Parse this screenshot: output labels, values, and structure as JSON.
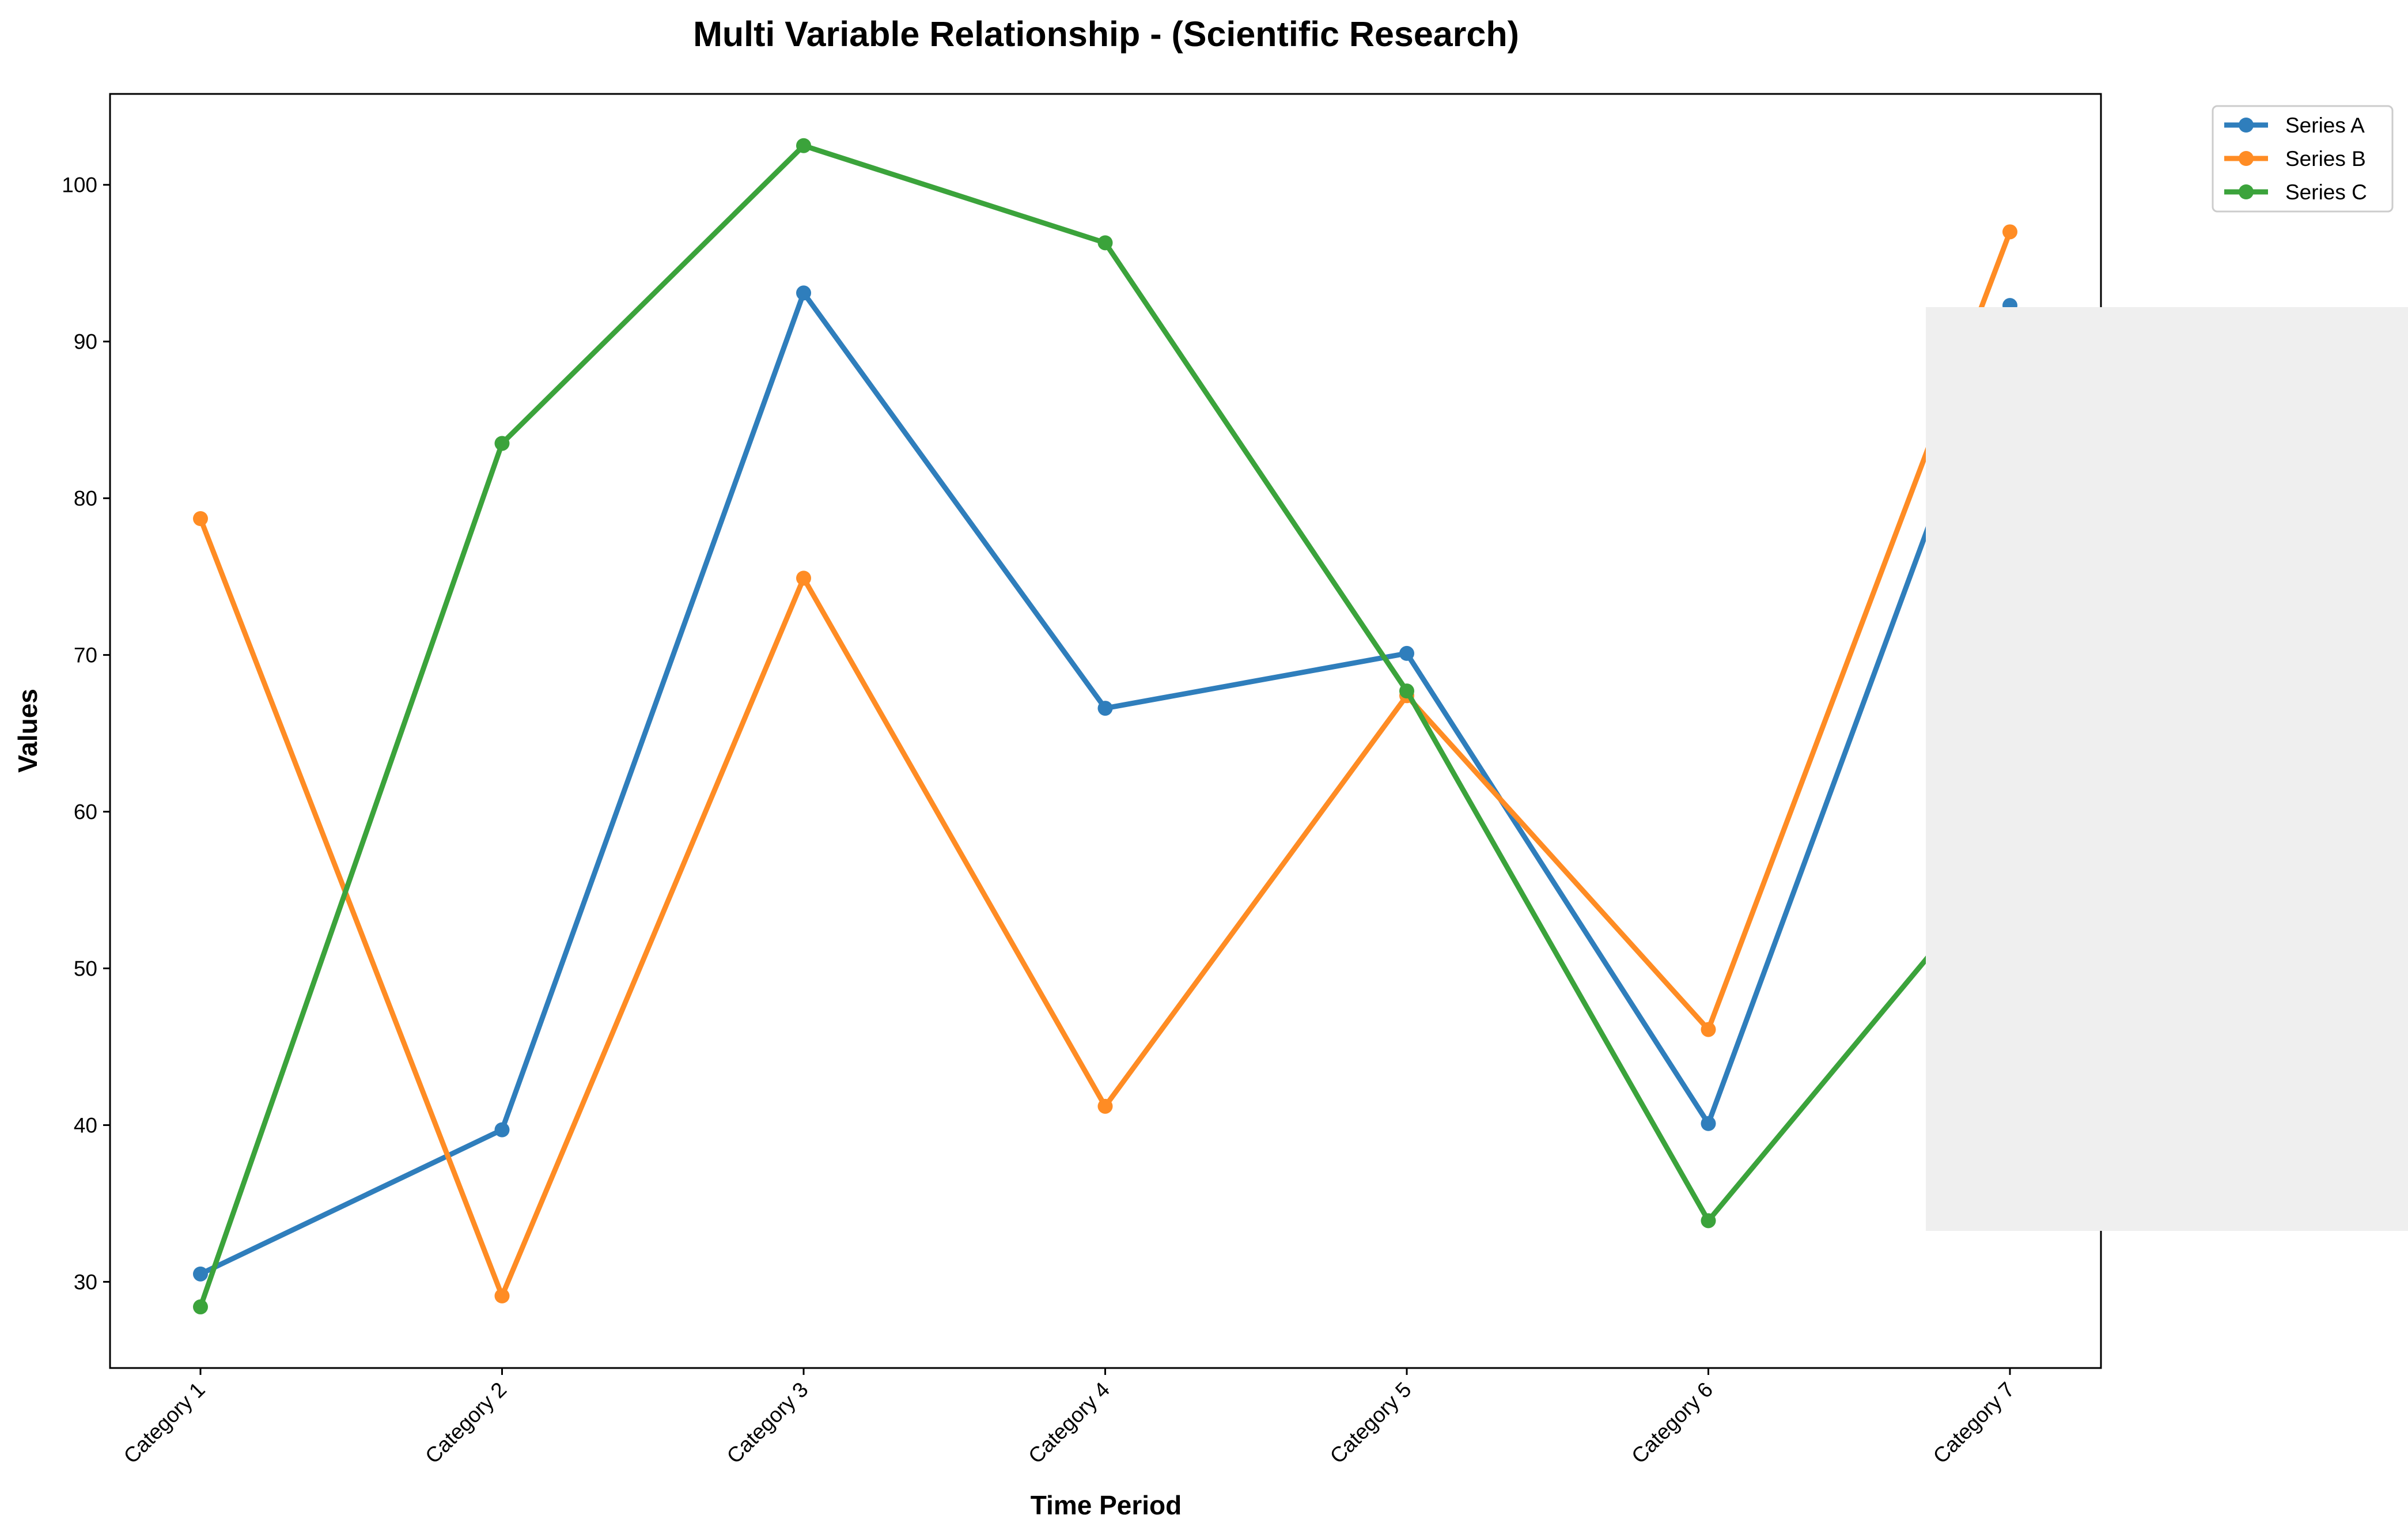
{
  "colors": {
    "series_a": "#2f7ebc",
    "series_b": "#ff8c24",
    "series_c": "#3ba33b",
    "overlay": "#efefef",
    "axes": "#000000",
    "background": "#ffffff"
  },
  "chart_data": {
    "type": "line",
    "title": "Multi Variable Relationship - (Scientific Research)",
    "xlabel": "Time Period",
    "ylabel": "Values",
    "categories": [
      "Category 1",
      "Category 2",
      "Category 3",
      "Category 4",
      "Category 5",
      "Category 6",
      "Category 7"
    ],
    "yticks": [
      30,
      40,
      50,
      60,
      70,
      80,
      90,
      100
    ],
    "ylim": [
      24.5,
      105.8
    ],
    "grid": false,
    "legend_position": "upper-right, outside plot area",
    "markers": true,
    "series": [
      {
        "name": "Series A",
        "color_key": "series_a",
        "values": [
          30.5,
          39.7,
          93.1,
          66.6,
          70.1,
          40.1,
          92.3
        ]
      },
      {
        "name": "Series B",
        "color_key": "series_b",
        "values": [
          78.7,
          29.1,
          74.9,
          41.2,
          67.4,
          46.1,
          97.0
        ]
      },
      {
        "name": "Series C",
        "color_key": "series_c",
        "values": [
          28.4,
          83.5,
          102.5,
          96.3,
          67.7,
          33.9,
          57.0
        ]
      }
    ],
    "occluded_region": "light gray rectangle covers the right part of the plot from just left of Category 7 to the image edge, between roughly y=92.5 and y=33.5"
  }
}
